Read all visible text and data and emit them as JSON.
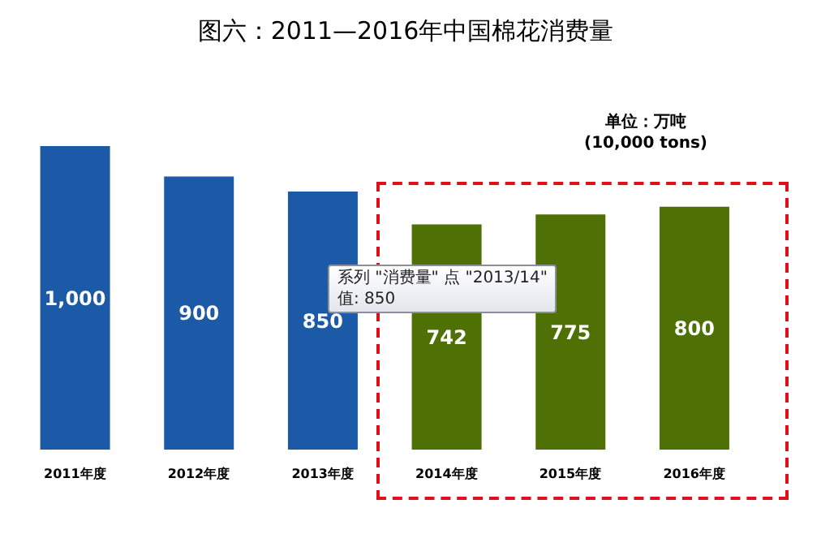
{
  "chart_data": {
    "type": "bar",
    "title": "图六：2011—2016年中国棉花消费量",
    "categories": [
      "2011年度",
      "2012年度",
      "2013年度",
      "2014年度",
      "2015年度",
      "2016年度"
    ],
    "values": [
      1000,
      900,
      850,
      742,
      775,
      800
    ],
    "colors": [
      "#1c5aa8",
      "#1c5aa8",
      "#1c5aa8",
      "#4e7004",
      "#4e7004",
      "#4e7004"
    ],
    "value_labels": [
      "1,000",
      "900",
      "850",
      "742",
      "775",
      "800"
    ],
    "annotations": [
      "单位：万吨",
      "(10,000 tons)",
      "系列 \"消费量\" 点 \"2013/14\"",
      "值: 850"
    ]
  }
}
